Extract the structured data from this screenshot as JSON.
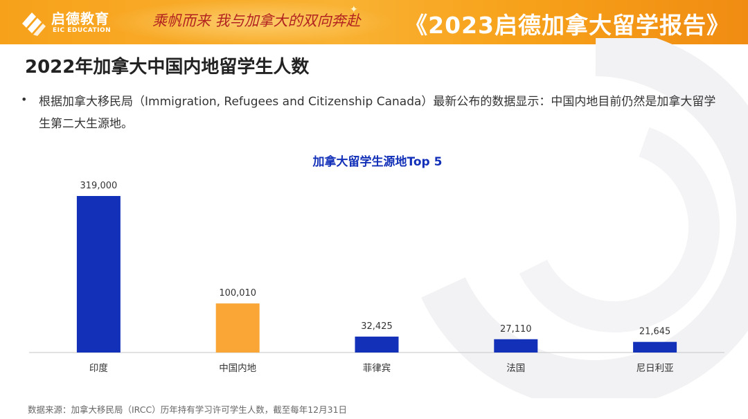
{
  "header": {
    "logo_cn": "启德教育",
    "logo_en": "EIC EDUCATION",
    "slogan": "乘帆而来 我与加拿大的双向奔赴",
    "report_title": "《2023启德加拿大留学报告》"
  },
  "page": {
    "title": "2022年加拿大中国内地留学生人数",
    "bullet": "根据加拿大移民局（Immigration, Refugees and Citizenship Canada）最新公布的数据显示：中国内地目前仍然是加拿大留学生第二大生源地。",
    "source": "数据来源：加拿大移民局（IRCC）历年持有学习许可学生人数，截至每年12月31日"
  },
  "colors": {
    "banner": "#f7a11a",
    "bar_default": "#1330b8",
    "bar_highlight": "#f9a637",
    "chart_title": "#1330b8"
  },
  "chart_data": {
    "type": "bar",
    "title": "加拿大留学生源地Top 5",
    "categories": [
      "印度",
      "中国内地",
      "菲律宾",
      "法国",
      "尼日利亚"
    ],
    "values": [
      319000,
      100010,
      32425,
      27110,
      21645
    ],
    "value_labels": [
      "319,000",
      "100,010",
      "32,425",
      "27,110",
      "21,645"
    ],
    "highlight_index": 1,
    "xlabel": "",
    "ylabel": "",
    "ylim": [
      0,
      319000
    ],
    "grid": false,
    "legend": "none"
  }
}
